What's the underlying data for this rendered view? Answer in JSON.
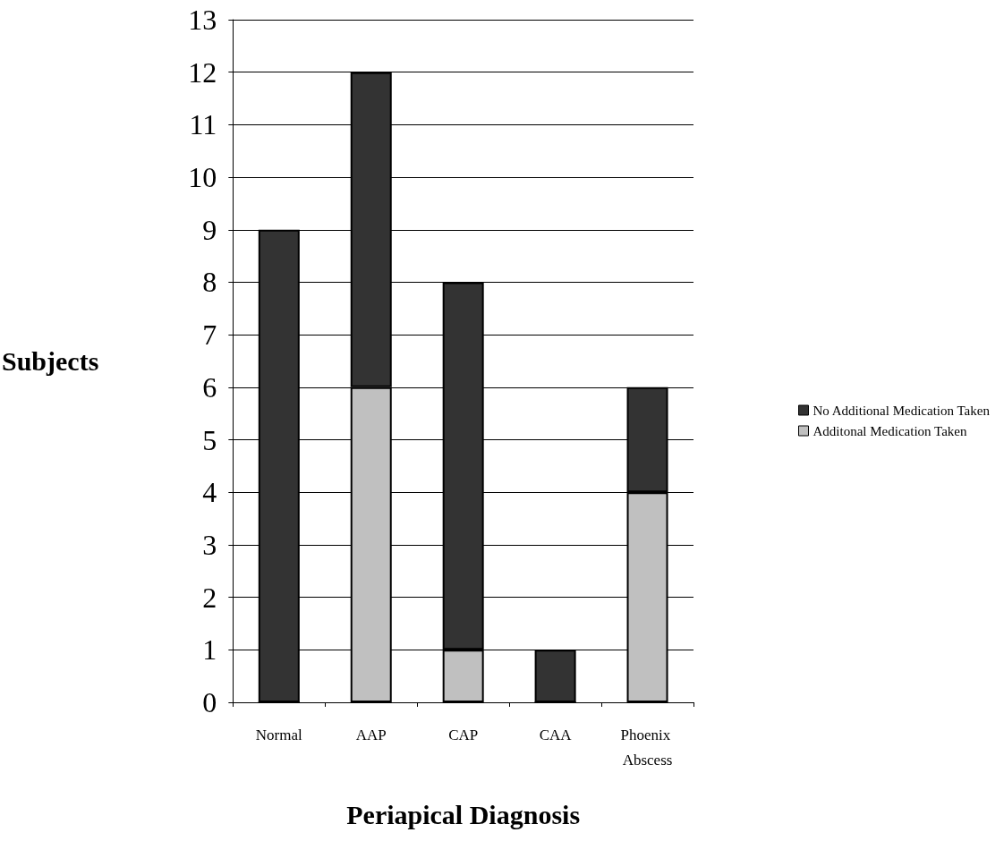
{
  "chart_data": {
    "type": "bar",
    "stacked": true,
    "xlabel": "Periapical Diagnosis",
    "ylabel": "Subjects",
    "categories": [
      "Normal",
      "AAP",
      "CAP",
      "CAA",
      "Phoenix Abscess"
    ],
    "series": [
      {
        "name": "Additonal Medication Taken",
        "color": "#c0c0c0",
        "values": [
          0,
          6,
          1,
          0,
          4
        ]
      },
      {
        "name": "No Additional Medication Taken",
        "color": "#333333",
        "values": [
          9,
          6,
          7,
          1,
          2
        ]
      }
    ],
    "ylim": [
      0,
      13
    ],
    "yticks": [
      0,
      1,
      2,
      3,
      4,
      5,
      6,
      7,
      8,
      9,
      10,
      11,
      12,
      13
    ],
    "grid": "y",
    "legend": "right"
  }
}
